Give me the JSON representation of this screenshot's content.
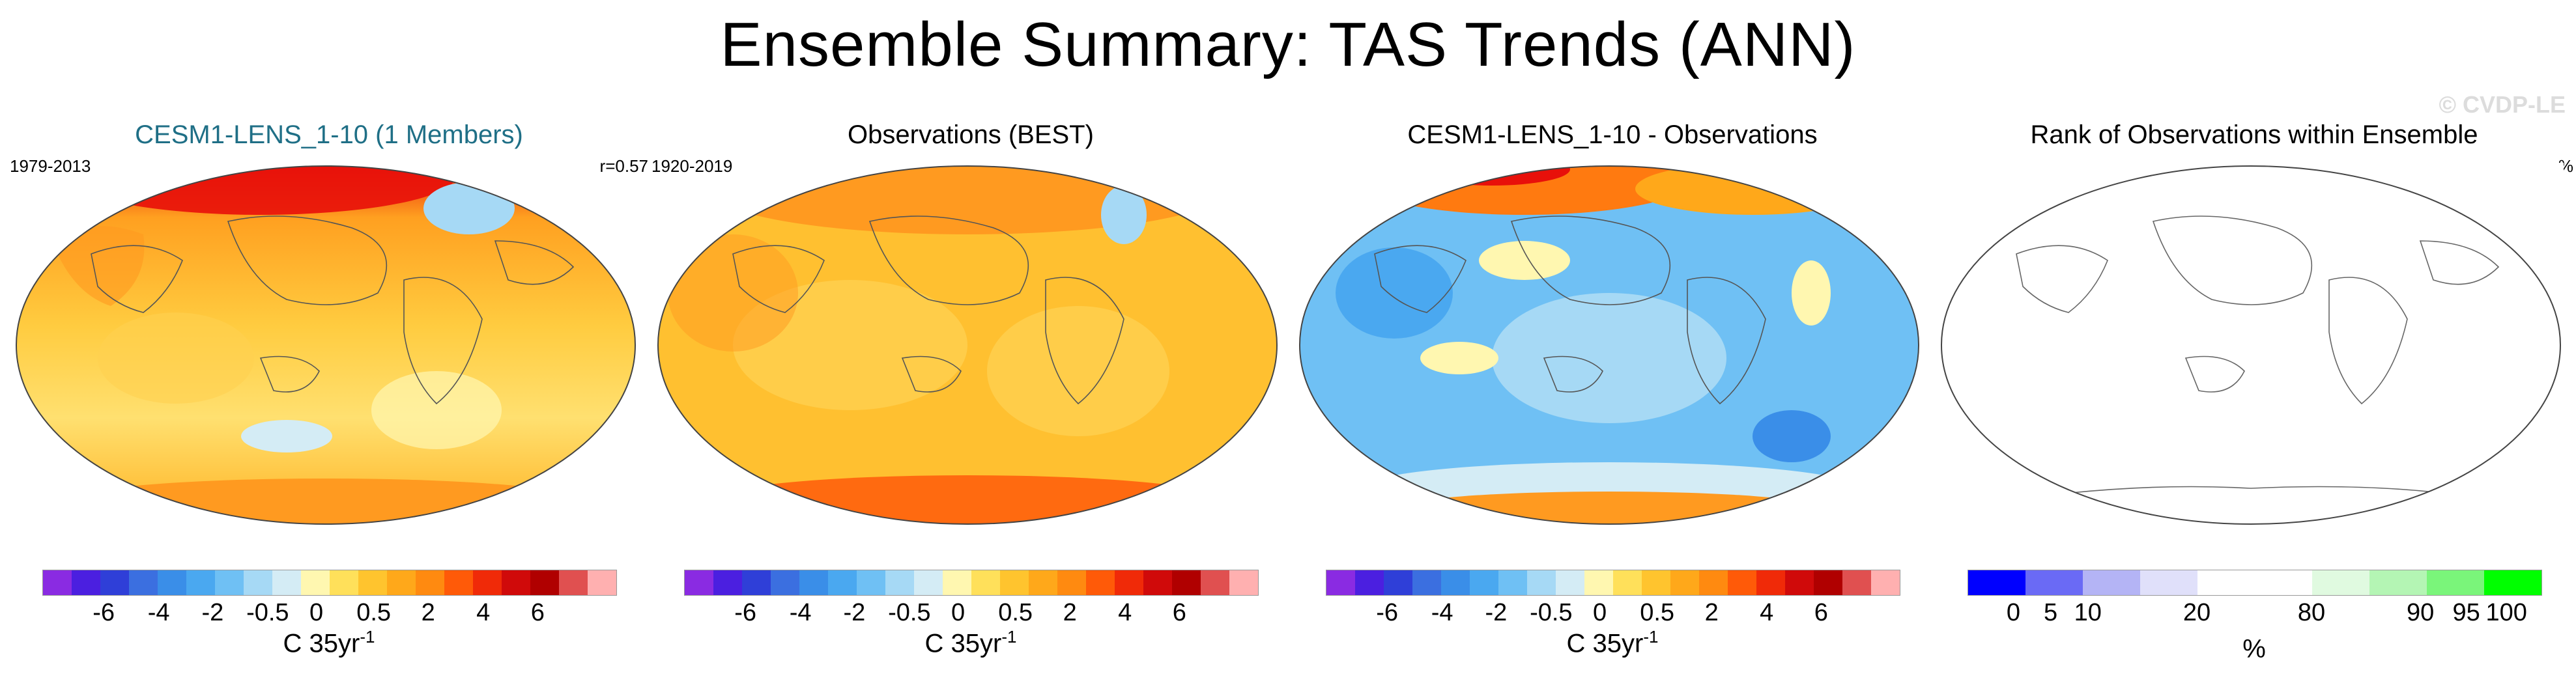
{
  "title": "Ensemble Summary: TAS Trends (ANN)",
  "watermark": "© CVDP-LE",
  "panels": [
    {
      "title": "CESM1-LENS_1-10 (1 Members)",
      "left_label": "1979-2013",
      "right_label": "r=0.57",
      "map_style": "ensemble warming trend"
    },
    {
      "title": "Observations (BEST)",
      "left_label": "1920-2019",
      "right_label": "",
      "map_style": "observed warming trend"
    },
    {
      "title": "CESM1-LENS_1-10 - Observations",
      "left_label": "",
      "right_label": "",
      "map_style": "difference"
    },
    {
      "title": "Rank of Observations within Ensemble",
      "left_label": "",
      "right_label": "--%",
      "map_style": "blank outline"
    }
  ],
  "trend_colorbar": {
    "colors": [
      "#8a2be2",
      "#4b1fe0",
      "#2f3fd8",
      "#3b6fe0",
      "#3a8ee8",
      "#4aa8f0",
      "#6fc0f4",
      "#a6d9f5",
      "#d4ecf5",
      "#fff7b0",
      "#ffe05a",
      "#ffc42e",
      "#ffa81a",
      "#ff8a10",
      "#ff5a08",
      "#f02a08",
      "#d00a0a",
      "#b00000",
      "#e05050",
      "#ffb0b0"
    ],
    "ticks": [
      "-6",
      "-4",
      "-2",
      "-0.5",
      "0",
      "0.5",
      "2",
      "4",
      "6"
    ],
    "units": "C 35yr",
    "units_exp": "-1"
  },
  "rank_colorbar": {
    "colors": [
      "#0000ff",
      "#6a6af5",
      "#b4b4f5",
      "#e0e0fa",
      "#ffffff",
      "#ffffff",
      "#e0fae0",
      "#b4f5b4",
      "#7af57a",
      "#00ff00"
    ],
    "ticks": [
      "0",
      "5",
      "10",
      "20",
      "80",
      "90",
      "95",
      "100"
    ],
    "units": "%"
  }
}
